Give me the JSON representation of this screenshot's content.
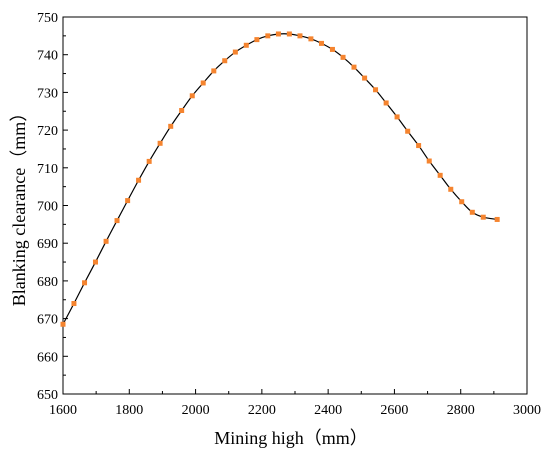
{
  "chart_data": {
    "type": "line",
    "title": "",
    "xlabel": "Mining high（mm）",
    "ylabel": "Blanking clearance（mm）",
    "xlim": [
      1600,
      3000
    ],
    "ylim": [
      650,
      750
    ],
    "xticks": [
      1600,
      1800,
      2000,
      2200,
      2400,
      2600,
      2800,
      3000
    ],
    "yticks": [
      650,
      660,
      670,
      680,
      690,
      700,
      710,
      720,
      730,
      740,
      750
    ],
    "grid": false,
    "legend": "none",
    "series": [
      {
        "line_color": "#000000",
        "marker": "square",
        "marker_color": "#f5842f",
        "x": [
          1600,
          1633,
          1665,
          1698,
          1730,
          1763,
          1795,
          1828,
          1860,
          1893,
          1925,
          1958,
          1990,
          2023,
          2055,
          2088,
          2120,
          2153,
          2185,
          2218,
          2250,
          2283,
          2315,
          2348,
          2380,
          2413,
          2445,
          2478,
          2510,
          2543,
          2575,
          2608,
          2640,
          2673,
          2705,
          2738,
          2770,
          2803,
          2835,
          2868,
          2910
        ],
        "y": [
          668.5,
          674.0,
          679.5,
          685.0,
          690.5,
          696.0,
          701.3,
          706.7,
          711.7,
          716.5,
          721.0,
          725.2,
          729.1,
          732.5,
          735.7,
          738.4,
          740.7,
          742.5,
          744.0,
          745.0,
          745.5,
          745.5,
          745.0,
          744.2,
          743.0,
          741.4,
          739.3,
          736.7,
          733.8,
          730.7,
          727.2,
          723.5,
          719.7,
          715.9,
          711.8,
          708.0,
          704.3,
          701.0,
          698.2,
          696.9,
          696.3
        ]
      }
    ]
  }
}
